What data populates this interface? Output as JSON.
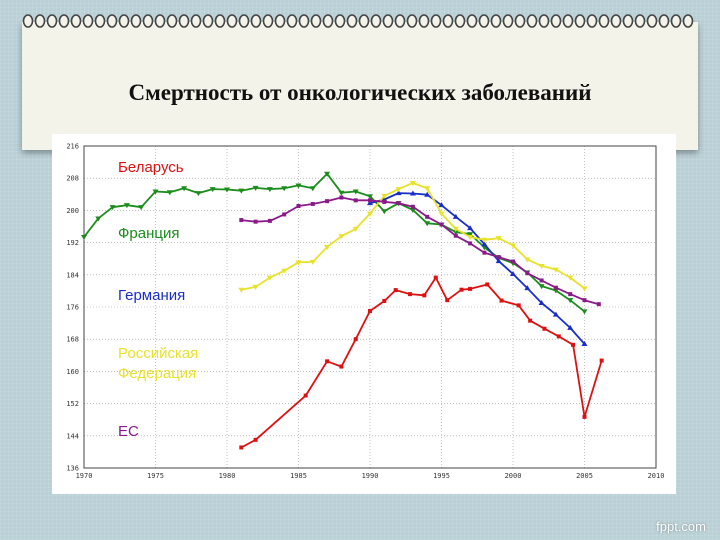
{
  "slide": {
    "title": "Смертность от онкологических заболеваний",
    "watermark": "fppt.com",
    "background_color": "#b8d0d6"
  },
  "chart_data": {
    "type": "line",
    "title": "",
    "xlabel": "",
    "ylabel": "",
    "xlim": [
      1970,
      2010
    ],
    "ylim": [
      136,
      216
    ],
    "x_ticks": [
      1970,
      1975,
      1980,
      1985,
      1990,
      1995,
      2000,
      2005,
      2010
    ],
    "y_ticks": [
      136,
      144,
      152,
      160,
      168,
      176,
      184,
      192,
      200,
      208,
      216
    ],
    "grid": true,
    "legend_position": "left-inside",
    "series": [
      {
        "name": "Беларусь",
        "color": "#dd1111",
        "marker": "square",
        "x": [
          1981,
          1982,
          1985.5,
          1987,
          1988,
          1989,
          1990,
          1991,
          1991.8,
          1992.8,
          1993.8,
          1994.6,
          1995.4,
          1996.4,
          1997,
          1998.2,
          1999.2,
          2000.4,
          2001.2,
          2002.2,
          2003.2,
          2004.2,
          2005,
          2006.2
        ],
        "y": [
          141.1,
          143,
          154,
          162.5,
          161.2,
          168,
          175,
          177.5,
          180.2,
          179.2,
          178.9,
          183.3,
          177.7,
          180.3,
          180.5,
          181.6,
          177.6,
          176.4,
          172.6,
          170.6,
          168.7,
          166.6,
          148.7,
          162.7
        ]
      },
      {
        "name": "Франция",
        "color": "#1c8c1c",
        "marker": "triangle-down",
        "x": [
          1970,
          1971,
          1972,
          1973,
          1974,
          1975,
          1976,
          1977,
          1978,
          1979,
          1980,
          1981,
          1982,
          1983,
          1984,
          1985,
          1986,
          1987,
          1988,
          1989,
          1990,
          1991,
          1992,
          1993,
          1994,
          1995,
          1996,
          1997,
          1998,
          1999,
          2000,
          2001,
          2002,
          2003,
          2004,
          2005
        ],
        "y": [
          193.4,
          198,
          200.8,
          201.3,
          200.8,
          204.7,
          204.5,
          205.5,
          204.3,
          205.3,
          205.2,
          204.9,
          205.6,
          205.3,
          205.5,
          206.2,
          205.5,
          209.1,
          204.4,
          204.7,
          203.5,
          199.8,
          201.8,
          200.1,
          196.8,
          196.5,
          194.6,
          194.1,
          190.8,
          188.2,
          186.9,
          184.6,
          181.2,
          180.1,
          177.7,
          174.9
        ]
      },
      {
        "name": "Германия",
        "color": "#1a2ec8",
        "marker": "triangle-up",
        "x": [
          1990,
          1991,
          1992,
          1993,
          1994,
          1995,
          1996,
          1997,
          1998,
          1999,
          2000,
          2001,
          2002,
          2003,
          2004,
          2005
        ],
        "y": [
          201.8,
          202.7,
          204.3,
          204.2,
          203.9,
          201.3,
          198.4,
          195.6,
          191.6,
          187.4,
          184.2,
          180.7,
          177,
          174.1,
          170.8,
          166.8
        ]
      },
      {
        "name": "Российская Федерация",
        "color": "#e8e22a",
        "marker": "triangle-down",
        "x": [
          1981,
          1982,
          1983,
          1984,
          1985,
          1986,
          1987,
          1988,
          1989,
          1990,
          1991,
          1992,
          1993,
          1994,
          1995,
          1996,
          1997,
          1998,
          1999,
          2000,
          2001,
          2002,
          2003,
          2004,
          2005
        ],
        "y": [
          180.3,
          181,
          183.3,
          185,
          187.1,
          187.2,
          190.9,
          193.6,
          195.4,
          199.2,
          203.6,
          205.3,
          206.8,
          205.5,
          199.2,
          195.4,
          193.4,
          192.7,
          193.1,
          191.3,
          187.8,
          186.2,
          185.3,
          183.3,
          180.6
        ]
      },
      {
        "name": "ЕС",
        "color": "#8a1a8a",
        "marker": "square",
        "x": [
          1981,
          1982,
          1983,
          1984,
          1985,
          1986,
          1987,
          1988,
          1989,
          1990,
          1991,
          1992,
          1993,
          1994,
          1995,
          1996,
          1997,
          1998,
          1999,
          2000,
          2001,
          2002,
          2003,
          2004,
          2005,
          2006
        ],
        "y": [
          197.6,
          197.2,
          197.4,
          199,
          201.1,
          201.6,
          202.3,
          203.2,
          202.5,
          202.5,
          202.1,
          201.8,
          200.9,
          198.4,
          196.5,
          193.7,
          191.8,
          189.5,
          188.4,
          187.3,
          184.4,
          182.6,
          180.8,
          179.2,
          177.7,
          176.7
        ]
      }
    ]
  }
}
